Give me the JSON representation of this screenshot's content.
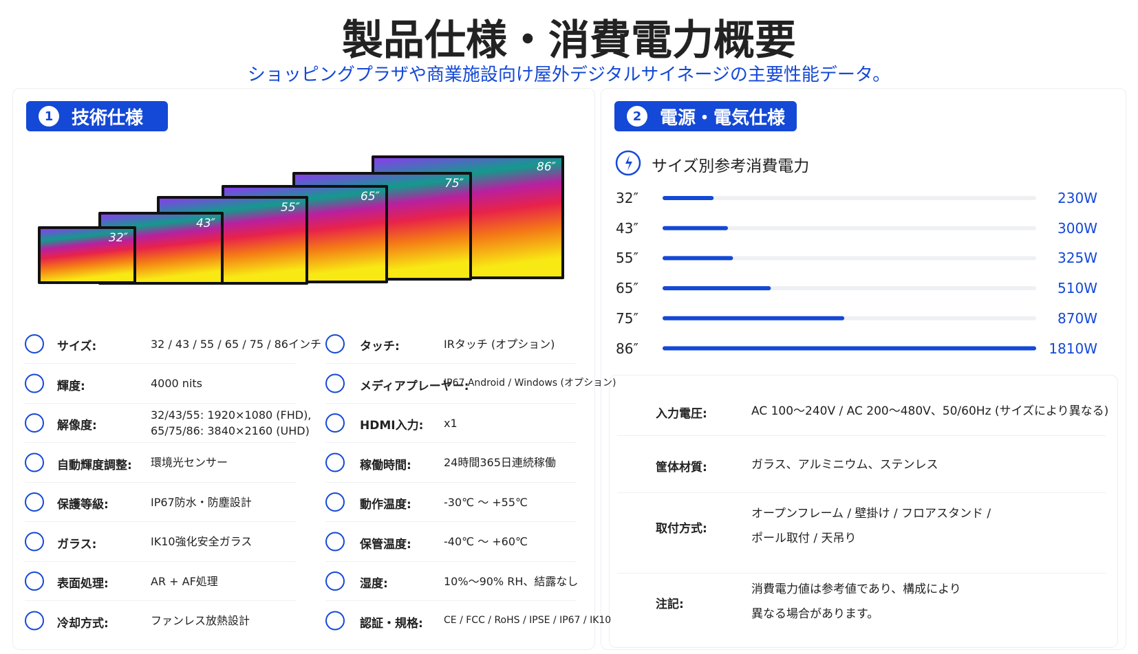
{
  "header": {
    "title": "製品仕様・消費電力概要",
    "subtitle": "ショッピングプラザや商業施設向け屋外デジタルサイネージの主要性能データ。"
  },
  "tech": {
    "number": "1",
    "title": "技術仕様",
    "monitor_labels": [
      "32″",
      "43″",
      "55″",
      "65″",
      "75″",
      "86″"
    ],
    "left": [
      {
        "label": "サイズ:",
        "lines": [
          "32 / 43 / 55 / 65 / 75 / 86インチ"
        ]
      },
      {
        "label": "輝度:",
        "lines": [
          "4000 nits"
        ]
      },
      {
        "label": "解像度:",
        "lines": [
          "32/43/55: 1920×1080 (FHD),",
          "65/75/86: 3840×2160 (UHD)"
        ]
      },
      {
        "label": "自動輝度調整:",
        "lines": [
          "環境光センサー"
        ]
      },
      {
        "label": "保護等級:",
        "lines": [
          "IP67防水・防塵設計"
        ]
      },
      {
        "label": "ガラス:",
        "lines": [
          "IK10強化安全ガラス"
        ]
      },
      {
        "label": "表面処理:",
        "lines": [
          "AR + AF処理"
        ]
      },
      {
        "label": "冷却方式:",
        "lines": [
          "ファンレス放熱設計"
        ]
      }
    ],
    "right": [
      {
        "label": "タッチ:",
        "lines": [
          "IRタッチ (オプション)"
        ]
      },
      {
        "label": "メディアプレーヤー:",
        "lines": [
          "IP67 Android / Windows (オプション)"
        ]
      },
      {
        "label": "HDMI入力:",
        "lines": [
          "x1"
        ]
      },
      {
        "label": "稼働時間:",
        "lines": [
          "24時間365日連続稼働"
        ]
      },
      {
        "label": "動作温度:",
        "lines": [
          "-30℃ 〜 +55℃"
        ]
      },
      {
        "label": "保管温度:",
        "lines": [
          "-40℃ 〜 +60℃"
        ]
      },
      {
        "label": "湿度:",
        "lines": [
          "10%〜90% RH、結露なし"
        ]
      },
      {
        "label": "認証・規格:",
        "lines": [
          "CE / FCC / RoHS / IPSE / IP67 / IK10"
        ]
      }
    ]
  },
  "power": {
    "number": "2",
    "title": "電源・電気仕様",
    "heading": "サイズ別参考消費電力",
    "sizes": [
      "32″",
      "43″",
      "55″",
      "65″",
      "75″",
      "86″"
    ],
    "values": [
      230,
      300,
      325,
      510,
      870,
      1810
    ],
    "value_labels": [
      "230W",
      "300W",
      "325W",
      "510W",
      "870W",
      "1810W"
    ],
    "color": "#1448d6",
    "specs": [
      {
        "label": "入力電圧:",
        "lines": [
          "AC 100〜240V / AC 200〜480V、50/60Hz (サイズにより異なる)"
        ]
      },
      {
        "label": "筐体材質:",
        "lines": [
          "ガラス、アルミニウム、ステンレス"
        ]
      },
      {
        "label": "取付方式:",
        "lines": [
          "オープンフレーム / 壁掛け / フロアスタンド /",
          "ポール取付 / 天吊り"
        ]
      },
      {
        "label": "注記:",
        "lines": [
          "消費電力値は参考値であり、構成により",
          "異なる場合があります。"
        ]
      }
    ]
  }
}
